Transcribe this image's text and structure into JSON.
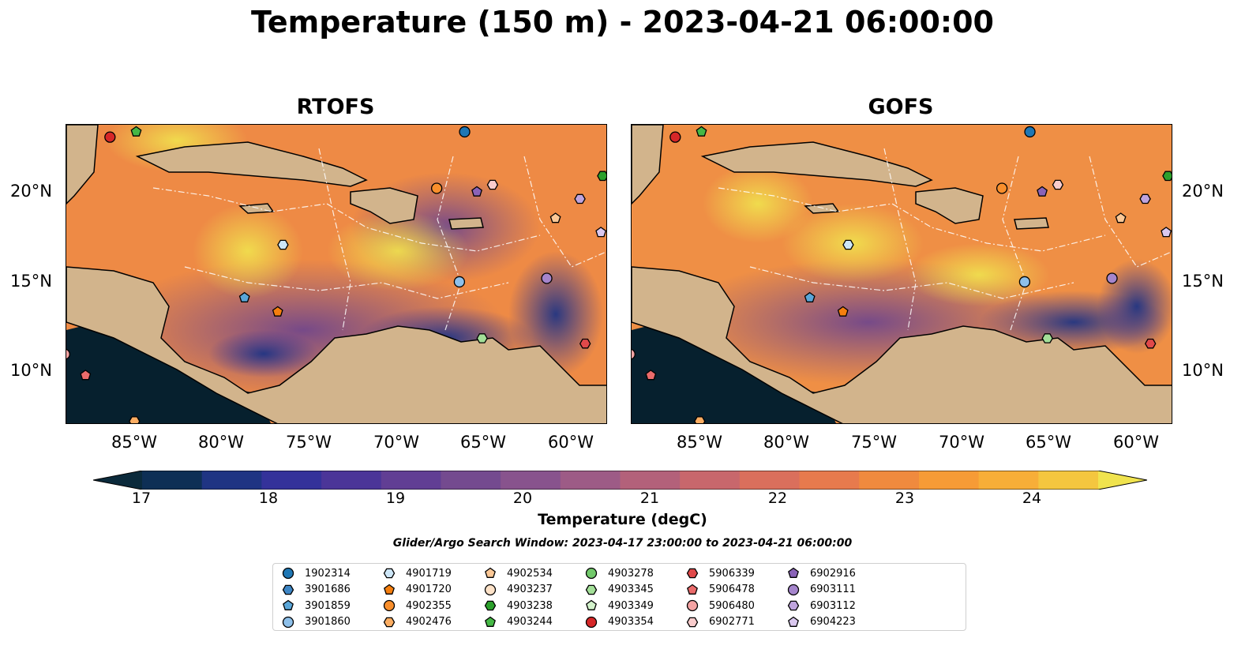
{
  "title": "Temperature (150 m) - 2023-04-21 06:00:00",
  "panels": [
    {
      "label": "RTOFS",
      "key": "rtofs"
    },
    {
      "label": "GOFS",
      "key": "gofs"
    }
  ],
  "axes": {
    "lon_ticks": [
      "85°W",
      "80°W",
      "75°W",
      "70°W",
      "65°W",
      "60°W"
    ],
    "lat_ticks": [
      "20°N",
      "15°N",
      "10°N"
    ]
  },
  "colorbar": {
    "title": "Temperature (degC)",
    "ticks": [
      "17",
      "18",
      "19",
      "20",
      "21",
      "22",
      "23",
      "24"
    ],
    "min": 16.75,
    "max": 24.5,
    "colors": [
      "#0b2a3b",
      "#0e2f55",
      "#1f3483",
      "#34329a",
      "#4b3598",
      "#613e94",
      "#744a8f",
      "#88538d",
      "#9d5b86",
      "#b3617a",
      "#c8676c",
      "#da6f5c",
      "#e77a4d",
      "#f08a3e",
      "#f69b36",
      "#f7ae38",
      "#f4c63f",
      "#f0e34e"
    ]
  },
  "search_window": "Glider/Argo Search Window: 2023-04-17 23:00:00 to 2023-04-21 06:00:00",
  "legend": [
    {
      "id": "1902314",
      "shape": "circle",
      "color": "#1f77b4"
    },
    {
      "id": "3901686",
      "shape": "hexagon",
      "color": "#3e86c5"
    },
    {
      "id": "3901859",
      "shape": "pentagon",
      "color": "#5aa6d8"
    },
    {
      "id": "3901860",
      "shape": "circle",
      "color": "#8ec0ea"
    },
    {
      "id": "4901719",
      "shape": "hexagon",
      "color": "#cde6f7"
    },
    {
      "id": "4901720",
      "shape": "pentagon",
      "color": "#f57f0e"
    },
    {
      "id": "4902355",
      "shape": "circle",
      "color": "#f98f2c"
    },
    {
      "id": "4902476",
      "shape": "hexagon",
      "color": "#fbad62"
    },
    {
      "id": "4902534",
      "shape": "pentagon",
      "color": "#fcc896"
    },
    {
      "id": "4903237",
      "shape": "circle",
      "color": "#fde2c8"
    },
    {
      "id": "4903238",
      "shape": "hexagon",
      "color": "#2ca02c"
    },
    {
      "id": "4903244",
      "shape": "pentagon",
      "color": "#45b845"
    },
    {
      "id": "4903278",
      "shape": "circle",
      "color": "#72c96b"
    },
    {
      "id": "4903345",
      "shape": "hexagon",
      "color": "#a3df98"
    },
    {
      "id": "4903349",
      "shape": "pentagon",
      "color": "#d3f2cb"
    },
    {
      "id": "4903354",
      "shape": "circle",
      "color": "#d62728"
    },
    {
      "id": "5906339",
      "shape": "hexagon",
      "color": "#e0494a"
    },
    {
      "id": "5906478",
      "shape": "pentagon",
      "color": "#ea6b6b"
    },
    {
      "id": "5906480",
      "shape": "circle",
      "color": "#f4a3a3"
    },
    {
      "id": "6902771",
      "shape": "hexagon",
      "color": "#f9cccc"
    },
    {
      "id": "6902916",
      "shape": "pentagon",
      "color": "#8a63b8"
    },
    {
      "id": "6903111",
      "shape": "circle",
      "color": "#a585cc"
    },
    {
      "id": "6903112",
      "shape": "hexagon",
      "color": "#bfa4dd"
    },
    {
      "id": "6904223",
      "shape": "pentagon",
      "color": "#dac8ef"
    }
  ],
  "map_extent": {
    "lon": [
      -89,
      -58
    ],
    "lat": [
      7,
      24
    ]
  },
  "floats": [
    {
      "id": "4903354",
      "lon": -86.5,
      "lat": 23.3
    },
    {
      "id": "4903244",
      "lon": -85.0,
      "lat": 23.6
    },
    {
      "id": "1902314",
      "lon": -66.2,
      "lat": 23.6
    },
    {
      "id": "4903238",
      "lon": -58.3,
      "lat": 21.1
    },
    {
      "id": "4902355",
      "lon": -67.8,
      "lat": 20.4
    },
    {
      "id": "6902916",
      "lon": -65.5,
      "lat": 20.2
    },
    {
      "id": "6902771",
      "lon": -64.6,
      "lat": 20.6
    },
    {
      "id": "6903112",
      "lon": -59.6,
      "lat": 19.8
    },
    {
      "id": "4902534",
      "lon": -61.0,
      "lat": 18.7
    },
    {
      "id": "6904223",
      "lon": -58.4,
      "lat": 17.9
    },
    {
      "id": "4901719",
      "lon": -76.6,
      "lat": 17.2
    },
    {
      "id": "3901860",
      "lon": -66.5,
      "lat": 15.1
    },
    {
      "id": "6903111",
      "lon": -61.5,
      "lat": 15.3
    },
    {
      "id": "3901859",
      "lon": -78.8,
      "lat": 14.2
    },
    {
      "id": "4901720",
      "lon": -76.9,
      "lat": 13.4
    },
    {
      "id": "4903345",
      "lon": -65.2,
      "lat": 11.9
    },
    {
      "id": "5906339",
      "lon": -59.3,
      "lat": 11.6
    },
    {
      "id": "5906478",
      "lon": -87.9,
      "lat": 9.8
    },
    {
      "id": "4902476",
      "lon": -85.1,
      "lat": 7.2
    },
    {
      "id": "5906480",
      "lon": -89.1,
      "lat": 11.0
    }
  ]
}
